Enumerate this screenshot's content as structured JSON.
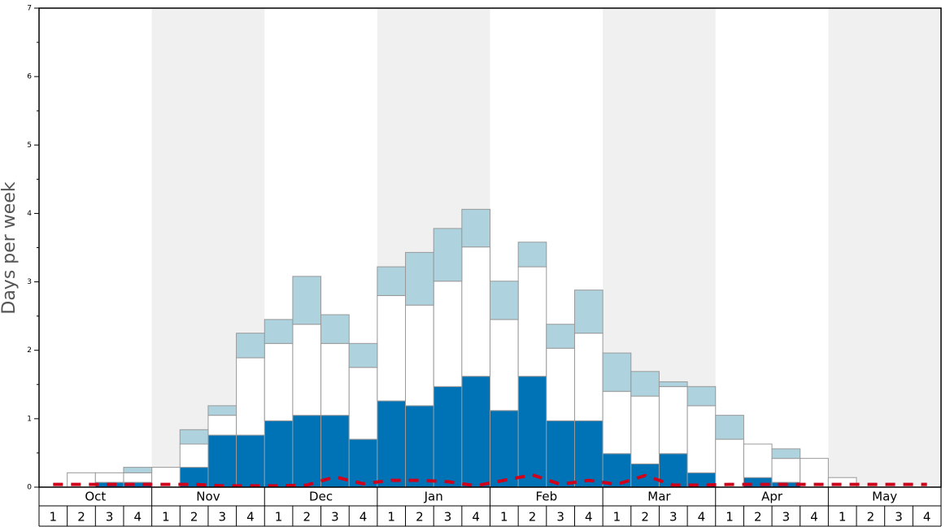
{
  "chart_data": {
    "type": "bar",
    "stacked": true,
    "y_label": "Days per week",
    "groups": [
      "Oct",
      "Nov",
      "Dec",
      "Jan",
      "Feb",
      "Mar",
      "Apr",
      "May"
    ],
    "categories": [
      "1",
      "2",
      "3",
      "4",
      "1",
      "2",
      "3",
      "4",
      "1",
      "2",
      "3",
      "4",
      "1",
      "2",
      "3",
      "4",
      "1",
      "2",
      "3",
      "4",
      "1",
      "2",
      "3",
      "4",
      "1",
      "2",
      "3",
      "4",
      "1",
      "2",
      "3",
      "4"
    ],
    "series": [
      {
        "type": "bar",
        "color": "#0073b7",
        "values": [
          0,
          0,
          0.07,
          0.07,
          0,
          0.29,
          0.76,
          0.76,
          0.97,
          1.05,
          1.05,
          0.7,
          1.26,
          1.19,
          1.47,
          1.62,
          1.12,
          1.62,
          0.97,
          0.97,
          0.49,
          0.34,
          0.49,
          0.21,
          0,
          0.14,
          0.07,
          0,
          0,
          0,
          0,
          0
        ]
      },
      {
        "type": "bar",
        "color": "#ffffff",
        "values": [
          0,
          0.21,
          0.14,
          0.14,
          0.29,
          0.34,
          0.29,
          1.13,
          1.13,
          1.33,
          1.05,
          1.05,
          1.54,
          1.47,
          1.54,
          1.89,
          1.33,
          1.6,
          1.06,
          1.28,
          0.91,
          0.99,
          0.98,
          0.98,
          0.7,
          0.49,
          0.35,
          0.42,
          0.14,
          0,
          0,
          0
        ]
      },
      {
        "type": "bar",
        "color": "#aed3df",
        "values": [
          0,
          0,
          0,
          0.08,
          0,
          0.21,
          0.14,
          0.36,
          0.35,
          0.7,
          0.42,
          0.35,
          0.42,
          0.77,
          0.77,
          0.55,
          0.56,
          0.36,
          0.35,
          0.63,
          0.56,
          0.36,
          0.07,
          0.28,
          0.35,
          0,
          0.14,
          0,
          0,
          0,
          0,
          0
        ]
      },
      {
        "type": "line",
        "color": "#d0021b",
        "dashed": true,
        "values": [
          0.04,
          0.04,
          0.04,
          0.04,
          0.04,
          0.04,
          0.02,
          0.02,
          0.02,
          0.03,
          0.15,
          0.05,
          0.1,
          0.1,
          0.08,
          0.02,
          0.1,
          0.18,
          0.04,
          0.1,
          0.04,
          0.17,
          0.03,
          0.03,
          0.04,
          0.04,
          0.04,
          0.04,
          0.04,
          0.04,
          0.04,
          0.04
        ]
      }
    ],
    "ylim": [
      0,
      7
    ],
    "yticks": [
      0,
      1,
      2,
      3,
      4,
      5,
      6,
      7
    ],
    "yminor_ticks": [
      0.5,
      1.5,
      2.5,
      3.5,
      4.5,
      5.5,
      6.5
    ],
    "band_color": "#f0f0f0"
  }
}
